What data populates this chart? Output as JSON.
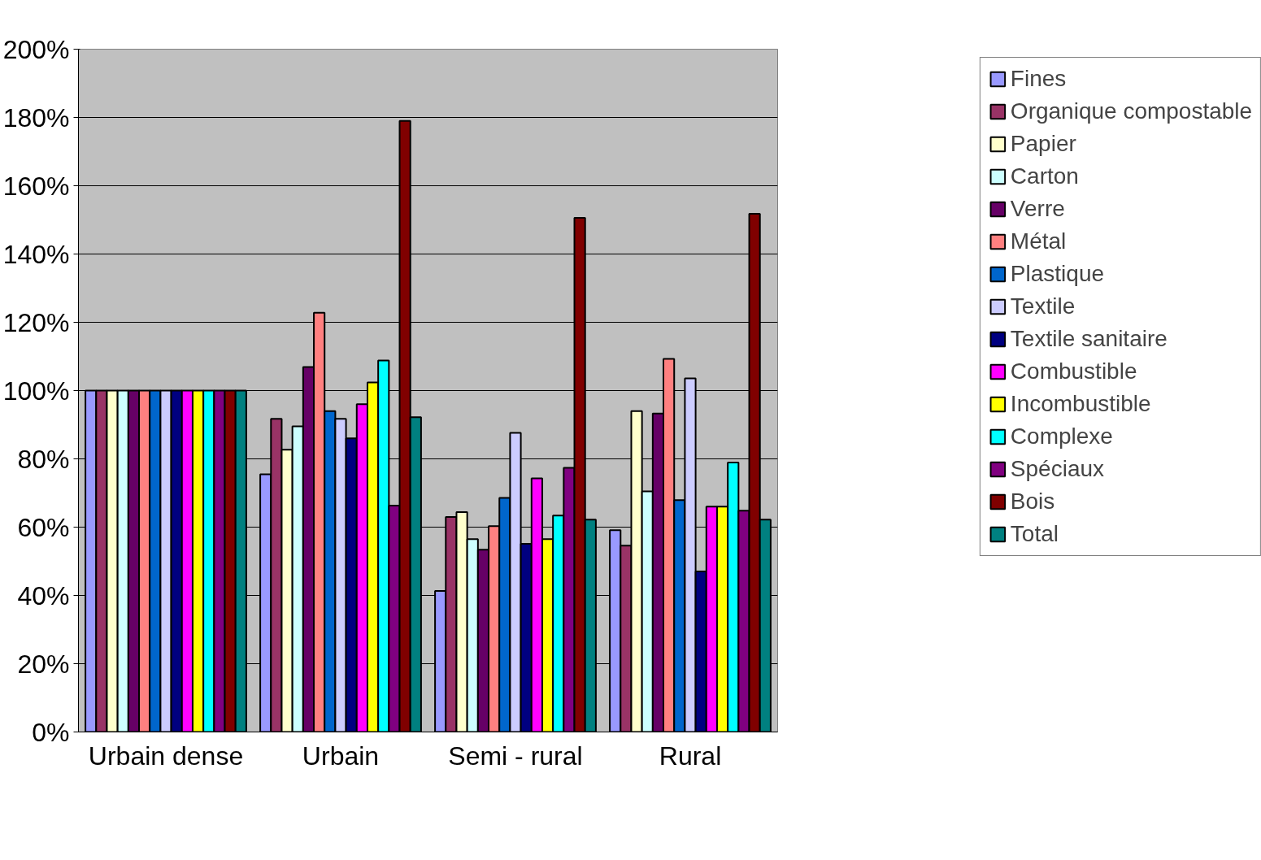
{
  "chart_data": {
    "type": "bar",
    "categories": [
      "Urbain dense",
      "Urbain",
      "Semi - rural",
      "Rural"
    ],
    "ylim": [
      0,
      200
    ],
    "yticks": [
      {
        "value": 0,
        "label": "0%"
      },
      {
        "value": 20,
        "label": "20%"
      },
      {
        "value": 40,
        "label": "40%"
      },
      {
        "value": 60,
        "label": "60%"
      },
      {
        "value": 80,
        "label": "80%"
      },
      {
        "value": 100,
        "label": "100%"
      },
      {
        "value": 120,
        "label": "120%"
      },
      {
        "value": 140,
        "label": "140%"
      },
      {
        "value": 160,
        "label": "160%"
      },
      {
        "value": 180,
        "label": "180%"
      },
      {
        "value": 200,
        "label": "200%"
      }
    ],
    "grid": "y",
    "legend": "right",
    "series": [
      {
        "name": "Fines",
        "color": "#9999ff",
        "values": [
          100,
          75.5,
          41.3,
          59.1
        ]
      },
      {
        "name": "Organique compostable",
        "color": "#993366",
        "values": [
          100,
          91.7,
          63,
          54.6
        ]
      },
      {
        "name": "Papier",
        "color": "#ffffcc",
        "values": [
          100,
          82.7,
          64.4,
          94
        ]
      },
      {
        "name": "Carton",
        "color": "#ccffff",
        "values": [
          100,
          89.5,
          56.5,
          70.5
        ]
      },
      {
        "name": "Verre",
        "color": "#660066",
        "values": [
          100,
          106.9,
          53.4,
          93.3
        ]
      },
      {
        "name": "Métal",
        "color": "#ff8080",
        "values": [
          100,
          122.8,
          60.3,
          109.3
        ]
      },
      {
        "name": "Plastique",
        "color": "#0066cc",
        "values": [
          100,
          94,
          68.6,
          67.9
        ]
      },
      {
        "name": "Textile",
        "color": "#ccccff",
        "values": [
          100,
          91.7,
          87.6,
          103.6
        ]
      },
      {
        "name": "Textile sanitaire",
        "color": "#000080",
        "values": [
          100,
          86,
          55.1,
          47
        ]
      },
      {
        "name": "Combustible",
        "color": "#ff00ff",
        "values": [
          100,
          96,
          74.3,
          66
        ]
      },
      {
        "name": "Incombustible",
        "color": "#ffff00",
        "values": [
          100,
          102.4,
          56.5,
          66
        ]
      },
      {
        "name": "Complexe",
        "color": "#00ffff",
        "values": [
          100,
          108.8,
          63.4,
          78.9
        ]
      },
      {
        "name": "Spéciaux",
        "color": "#800080",
        "values": [
          100,
          66.3,
          77.4,
          64.8
        ]
      },
      {
        "name": "Bois",
        "color": "#800000",
        "values": [
          100,
          179,
          150.6,
          151.8
        ]
      },
      {
        "name": "Total",
        "color": "#008080",
        "values": [
          100,
          92.2,
          62.2,
          62.2
        ]
      }
    ]
  }
}
